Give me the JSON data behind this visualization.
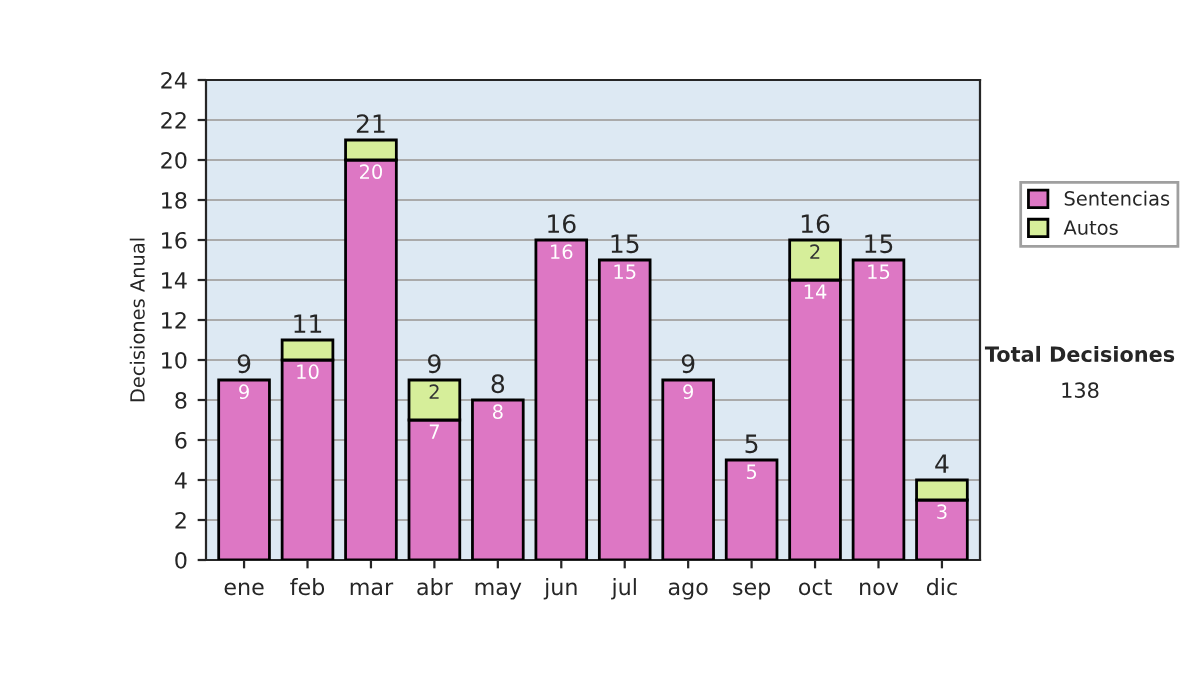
{
  "chart_data": {
    "type": "bar",
    "stacked": true,
    "ylabel": "Decisiones Anual",
    "categories": [
      "ene",
      "feb",
      "mar",
      "abr",
      "may",
      "jun",
      "jul",
      "ago",
      "sep",
      "oct",
      "nov",
      "dic"
    ],
    "series": [
      {
        "name": "Sentencias",
        "color": "#dd77c4",
        "values": [
          9,
          10,
          20,
          7,
          8,
          16,
          15,
          9,
          5,
          14,
          15,
          3
        ],
        "value_labels": [
          "9",
          "10",
          "20",
          "7",
          "8",
          "16",
          "15",
          "9",
          "5",
          "14",
          "15",
          "3"
        ]
      },
      {
        "name": "Autos",
        "color": "#d6ee9a",
        "values": [
          null,
          1,
          1,
          2,
          null,
          null,
          null,
          null,
          null,
          2,
          null,
          1
        ],
        "value_labels": [
          null,
          null,
          null,
          "2",
          null,
          null,
          null,
          null,
          null,
          "2",
          null,
          null
        ]
      }
    ],
    "totals": [
      "9",
      "11",
      "21",
      "9",
      "8",
      "16",
      "15",
      "9",
      "5",
      "16",
      "15",
      "4"
    ],
    "ylim": [
      0,
      24
    ],
    "yticks": [
      0,
      2,
      4,
      6,
      8,
      10,
      12,
      14,
      16,
      18,
      20,
      22,
      24
    ],
    "grid": "y",
    "legend": "right",
    "annotations": [
      "Total Decisiones",
      "138"
    ]
  }
}
